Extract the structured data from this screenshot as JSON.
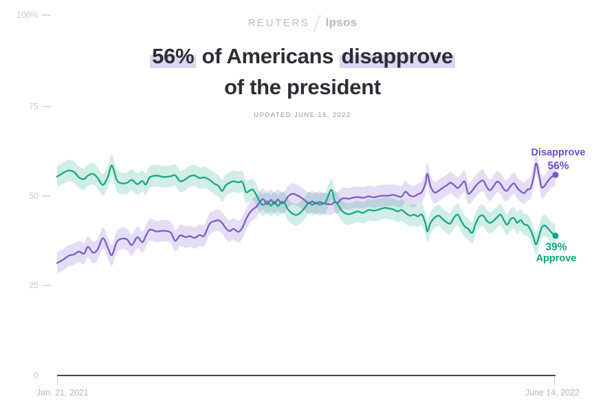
{
  "brand": {
    "reuters": "REUTERS",
    "ipsos": "Ipsos"
  },
  "title": {
    "seg1": "56%",
    "seg2": " of Americans ",
    "seg3": "disapprove",
    "line2": "of the president",
    "updated": "UPDATED JUNE 15, 2022"
  },
  "axes": {
    "y_ticks": [
      "100%",
      "75",
      "50",
      "25",
      "0"
    ],
    "x_start": "Jan. 21, 2021",
    "x_end": "June 14, 2022"
  },
  "annotations": {
    "disapprove_label": "Disapprove",
    "disapprove_value": "56%",
    "approve_value": "39%",
    "approve_label": "Approve"
  },
  "colors": {
    "disapprove_line": "#7a5bc7",
    "approve_line": "#16a584",
    "title_highlight": "#dcd6f2",
    "axis_line": "#43474c",
    "muted_text": "#b9bcbf"
  },
  "chart_data": {
    "type": "line",
    "title": "56% of Americans disapprove of the president",
    "subtitle": "UPDATED JUNE 15, 2022",
    "x_range": [
      "Jan. 21, 2021",
      "June 14, 2022"
    ],
    "xlabel": "",
    "ylabel": "%",
    "ylim": [
      0,
      100
    ],
    "y_ticks": [
      0,
      25,
      50,
      75,
      100
    ],
    "grid": false,
    "legend_position": "end-of-line",
    "band_halfwidth": 3,
    "series": [
      {
        "name": "Disapprove",
        "color": "#7a5bc7",
        "end_value": 56,
        "end_label": "56%",
        "points": [
          [
            0,
            31.4
          ],
          [
            0.012,
            32.3
          ],
          [
            0.023,
            33.4
          ],
          [
            0.034,
            33.8
          ],
          [
            0.044,
            34.6
          ],
          [
            0.054,
            34
          ],
          [
            0.062,
            35.9
          ],
          [
            0.072,
            34.3
          ],
          [
            0.081,
            35.1
          ],
          [
            0.092,
            38.3
          ],
          [
            0.102,
            35.6
          ],
          [
            0.11,
            33.6
          ],
          [
            0.12,
            37.3
          ],
          [
            0.131,
            38.2
          ],
          [
            0.141,
            37.9
          ],
          [
            0.15,
            36.4
          ],
          [
            0.161,
            38.6
          ],
          [
            0.171,
            37.2
          ],
          [
            0.178,
            38.9
          ],
          [
            0.186,
            40.7
          ],
          [
            0.2,
            40.2
          ],
          [
            0.214,
            40.4
          ],
          [
            0.228,
            39.9
          ],
          [
            0.237,
            37.6
          ],
          [
            0.247,
            39.1
          ],
          [
            0.258,
            38.6
          ],
          [
            0.266,
            38.9
          ],
          [
            0.276,
            38.4
          ],
          [
            0.286,
            39.2
          ],
          [
            0.295,
            39
          ],
          [
            0.306,
            42.3
          ],
          [
            0.316,
            43.1
          ],
          [
            0.324,
            43.3
          ],
          [
            0.331,
            42.6
          ],
          [
            0.338,
            41.2
          ],
          [
            0.346,
            40.3
          ],
          [
            0.354,
            40.9
          ],
          [
            0.364,
            40.1
          ],
          [
            0.372,
            41.3
          ],
          [
            0.379,
            43.6
          ],
          [
            0.386,
            45.3
          ],
          [
            0.393,
            46.4
          ],
          [
            0.4,
            47.1
          ],
          [
            0.407,
            48.5
          ],
          [
            0.414,
            49.2
          ],
          [
            0.422,
            47.8
          ],
          [
            0.429,
            49
          ],
          [
            0.436,
            47.9
          ],
          [
            0.443,
            49.1
          ],
          [
            0.45,
            48.1
          ],
          [
            0.457,
            48.5
          ],
          [
            0.463,
            49.9
          ],
          [
            0.472,
            50.7
          ],
          [
            0.48,
            50.4
          ],
          [
            0.488,
            49.8
          ],
          [
            0.497,
            48.9
          ],
          [
            0.505,
            48
          ],
          [
            0.512,
            48.6
          ],
          [
            0.519,
            47.9
          ],
          [
            0.526,
            48.4
          ],
          [
            0.532,
            48.2
          ],
          [
            0.539,
            47.9
          ],
          [
            0.55,
            47.8
          ],
          [
            0.557,
            48.4
          ],
          [
            0.563,
            48.2
          ],
          [
            0.57,
            49.2
          ],
          [
            0.577,
            49.5
          ],
          [
            0.585,
            49.3
          ],
          [
            0.593,
            49.6
          ],
          [
            0.603,
            49.8
          ],
          [
            0.614,
            49.6
          ],
          [
            0.625,
            50
          ],
          [
            0.636,
            49.7
          ],
          [
            0.647,
            50.1
          ],
          [
            0.658,
            50.2
          ],
          [
            0.666,
            50.2
          ],
          [
            0.674,
            50.4
          ],
          [
            0.683,
            50.1
          ],
          [
            0.691,
            49.9
          ],
          [
            0.699,
            51.3
          ],
          [
            0.708,
            50.2
          ],
          [
            0.716,
            50
          ],
          [
            0.724,
            50.6
          ],
          [
            0.732,
            51.2
          ],
          [
            0.739,
            53.6
          ],
          [
            0.743,
            56.3
          ],
          [
            0.749,
            52.9
          ],
          [
            0.757,
            51.1
          ],
          [
            0.766,
            51.6
          ],
          [
            0.774,
            52.4
          ],
          [
            0.782,
            53.1
          ],
          [
            0.789,
            53.8
          ],
          [
            0.796,
            53.2
          ],
          [
            0.804,
            52.3
          ],
          [
            0.811,
            53.3
          ],
          [
            0.818,
            54.1
          ],
          [
            0.825,
            50.8
          ],
          [
            0.833,
            51.6
          ],
          [
            0.84,
            52.9
          ],
          [
            0.847,
            53.9
          ],
          [
            0.855,
            54.4
          ],
          [
            0.862,
            52.6
          ],
          [
            0.869,
            51.7
          ],
          [
            0.876,
            52.9
          ],
          [
            0.883,
            54.1
          ],
          [
            0.89,
            53.4
          ],
          [
            0.897,
            51.9
          ],
          [
            0.903,
            51.6
          ],
          [
            0.91,
            52.9
          ],
          [
            0.917,
            53.6
          ],
          [
            0.923,
            52.4
          ],
          [
            0.93,
            51.4
          ],
          [
            0.937,
            50.9
          ],
          [
            0.944,
            51.9
          ],
          [
            0.95,
            52.3
          ],
          [
            0.956,
            55.3
          ],
          [
            0.961,
            59.2
          ],
          [
            0.967,
            55.9
          ],
          [
            0.972,
            52.6
          ],
          [
            0.978,
            52.9
          ],
          [
            0.985,
            54.3
          ],
          [
            0.992,
            55.4
          ],
          [
            1,
            56
          ]
        ]
      },
      {
        "name": "Approve",
        "color": "#16a584",
        "end_value": 39,
        "end_label": "39%",
        "points": [
          [
            0,
            55.5
          ],
          [
            0.012,
            56.5
          ],
          [
            0.023,
            57.2
          ],
          [
            0.034,
            56.8
          ],
          [
            0.044,
            55.3
          ],
          [
            0.054,
            54.8
          ],
          [
            0.062,
            55.8
          ],
          [
            0.072,
            56.3
          ],
          [
            0.081,
            55.2
          ],
          [
            0.092,
            53.2
          ],
          [
            0.102,
            55.5
          ],
          [
            0.11,
            58.6
          ],
          [
            0.12,
            54.5
          ],
          [
            0.131,
            53.6
          ],
          [
            0.141,
            53.8
          ],
          [
            0.15,
            54.6
          ],
          [
            0.161,
            53.4
          ],
          [
            0.171,
            54.3
          ],
          [
            0.178,
            53.3
          ],
          [
            0.186,
            55.3
          ],
          [
            0.2,
            55.8
          ],
          [
            0.214,
            55.4
          ],
          [
            0.228,
            55.6
          ],
          [
            0.237,
            55.9
          ],
          [
            0.247,
            54.2
          ],
          [
            0.258,
            54.8
          ],
          [
            0.266,
            55.6
          ],
          [
            0.276,
            55.8
          ],
          [
            0.286,
            55.1
          ],
          [
            0.295,
            55.3
          ],
          [
            0.306,
            54.6
          ],
          [
            0.316,
            53.5
          ],
          [
            0.324,
            52.9
          ],
          [
            0.331,
            51.5
          ],
          [
            0.338,
            53
          ],
          [
            0.346,
            53.8
          ],
          [
            0.354,
            54.2
          ],
          [
            0.364,
            53.9
          ],
          [
            0.372,
            54
          ],
          [
            0.379,
            51.2
          ],
          [
            0.386,
            51.6
          ],
          [
            0.393,
            51.9
          ],
          [
            0.4,
            50.3
          ],
          [
            0.407,
            48.4
          ],
          [
            0.414,
            47.6
          ],
          [
            0.422,
            48.6
          ],
          [
            0.429,
            47.4
          ],
          [
            0.436,
            48.5
          ],
          [
            0.443,
            47.3
          ],
          [
            0.45,
            48.4
          ],
          [
            0.457,
            48
          ],
          [
            0.463,
            46.4
          ],
          [
            0.472,
            45.2
          ],
          [
            0.48,
            44.8
          ],
          [
            0.488,
            45.4
          ],
          [
            0.497,
            46.8
          ],
          [
            0.505,
            48.3
          ],
          [
            0.512,
            47.6
          ],
          [
            0.519,
            48.3
          ],
          [
            0.526,
            47.7
          ],
          [
            0.532,
            47.9
          ],
          [
            0.539,
            48.4
          ],
          [
            0.55,
            51.8
          ],
          [
            0.557,
            48.8
          ],
          [
            0.563,
            47.8
          ],
          [
            0.57,
            46.2
          ],
          [
            0.577,
            45.4
          ],
          [
            0.585,
            45
          ],
          [
            0.593,
            45.3
          ],
          [
            0.603,
            45.8
          ],
          [
            0.614,
            45.4
          ],
          [
            0.625,
            46.2
          ],
          [
            0.636,
            46
          ],
          [
            0.647,
            46.4
          ],
          [
            0.658,
            46.8
          ],
          [
            0.666,
            46.6
          ],
          [
            0.674,
            46.4
          ],
          [
            0.683,
            45.8
          ],
          [
            0.691,
            46.2
          ],
          [
            0.699,
            45.4
          ],
          [
            0.708,
            44.6
          ],
          [
            0.716,
            44.9
          ],
          [
            0.724,
            44.4
          ],
          [
            0.732,
            44.9
          ],
          [
            0.739,
            42.5
          ],
          [
            0.743,
            40.2
          ],
          [
            0.749,
            42.5
          ],
          [
            0.757,
            44
          ],
          [
            0.766,
            44.6
          ],
          [
            0.774,
            43.6
          ],
          [
            0.782,
            42.7
          ],
          [
            0.789,
            42.4
          ],
          [
            0.796,
            44
          ],
          [
            0.804,
            44.9
          ],
          [
            0.811,
            43.1
          ],
          [
            0.818,
            41.6
          ],
          [
            0.825,
            40.9
          ],
          [
            0.833,
            39.8
          ],
          [
            0.84,
            42.5
          ],
          [
            0.847,
            44.3
          ],
          [
            0.855,
            44.6
          ],
          [
            0.862,
            43.2
          ],
          [
            0.869,
            42.6
          ],
          [
            0.876,
            43.2
          ],
          [
            0.883,
            44.2
          ],
          [
            0.89,
            44.9
          ],
          [
            0.897,
            43.2
          ],
          [
            0.903,
            42.1
          ],
          [
            0.91,
            43.6
          ],
          [
            0.917,
            43.9
          ],
          [
            0.923,
            42.6
          ],
          [
            0.93,
            43.4
          ],
          [
            0.937,
            42.2
          ],
          [
            0.944,
            41.9
          ],
          [
            0.95,
            40.6
          ],
          [
            0.956,
            38.5
          ],
          [
            0.961,
            36.6
          ],
          [
            0.967,
            38.9
          ],
          [
            0.972,
            41.2
          ],
          [
            0.978,
            41.9
          ],
          [
            0.985,
            41
          ],
          [
            0.992,
            39.9
          ],
          [
            1,
            39
          ]
        ]
      }
    ]
  }
}
